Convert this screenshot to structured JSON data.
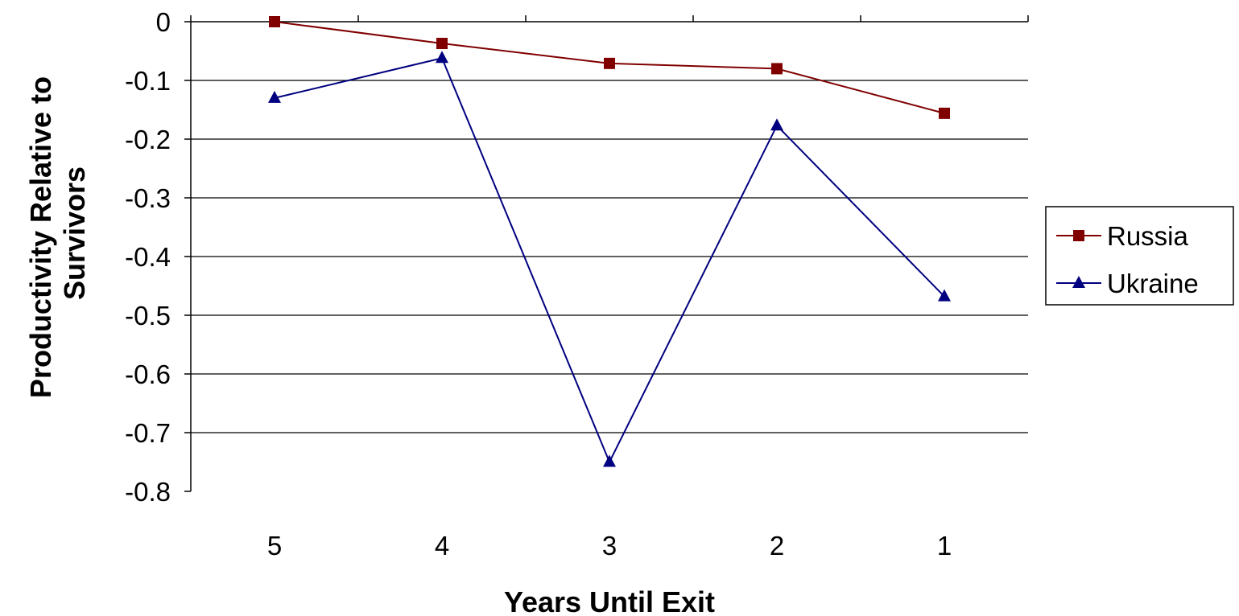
{
  "chart_data": {
    "type": "line",
    "title": "",
    "xlabel": "Years Until Exit",
    "ylabel_lines": [
      "Productivity Relative to",
      "Survivors"
    ],
    "categories": [
      "5",
      "4",
      "3",
      "2",
      "1"
    ],
    "yticks": [
      "0",
      "-0.1",
      "-0.2",
      "-0.3",
      "-0.4",
      "-0.5",
      "-0.6",
      "-0.7",
      "-0.8"
    ],
    "ylim": [
      -0.8,
      0
    ],
    "grid": true,
    "legend_position": "right",
    "series": [
      {
        "name": "Russia",
        "color": "#800000",
        "marker": "square",
        "values": [
          0,
          -0.037,
          -0.071,
          -0.08,
          -0.156
        ]
      },
      {
        "name": "Ukraine",
        "color": "#000080",
        "marker": "triangle",
        "values": [
          -0.13,
          -0.062,
          -0.75,
          -0.177,
          -0.468
        ]
      }
    ]
  }
}
